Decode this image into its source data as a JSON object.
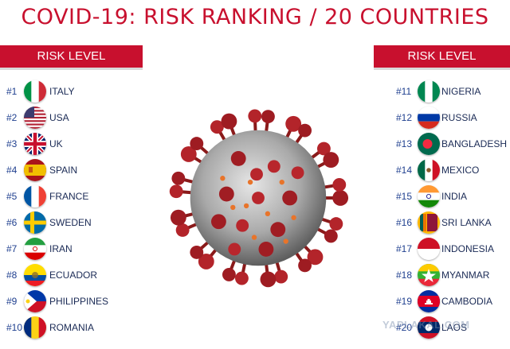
{
  "title": "COVID-19: RISK RANKING / 20 COUNTRIES",
  "left_header": "RISK LEVEL",
  "right_header": "RISK LEVEL",
  "accent_color": "#c8102e",
  "rank_color": "#1f3f8f",
  "left_list": [
    {
      "rank": "#1",
      "country": "ITALY",
      "flag": "italy-flag"
    },
    {
      "rank": "#2",
      "country": "USA",
      "flag": "usa-flag"
    },
    {
      "rank": "#3",
      "country": "UK",
      "flag": "uk-flag"
    },
    {
      "rank": "#4",
      "country": "SPAIN",
      "flag": "spain-flag"
    },
    {
      "rank": "#5",
      "country": "FRANCE",
      "flag": "france-flag"
    },
    {
      "rank": "#6",
      "country": "SWEDEN",
      "flag": "sweden-flag"
    },
    {
      "rank": "#7",
      "country": "IRAN",
      "flag": "iran-flag"
    },
    {
      "rank": "#8",
      "country": "ECUADOR",
      "flag": "ecuador-flag"
    },
    {
      "rank": "#9",
      "country": "PHILIPPINES",
      "flag": "philippines-flag"
    },
    {
      "rank": "#10",
      "country": "ROMANIA",
      "flag": "romania-flag"
    }
  ],
  "right_list": [
    {
      "rank": "#11",
      "country": "NIGERIA",
      "flag": "nigeria-flag"
    },
    {
      "rank": "#12",
      "country": "RUSSIA",
      "flag": "russia-flag"
    },
    {
      "rank": "#13",
      "country": "BANGLADESH",
      "flag": "bangladesh-flag"
    },
    {
      "rank": "#14",
      "country": "MEXICO",
      "flag": "mexico-flag"
    },
    {
      "rank": "#15",
      "country": "INDIA",
      "flag": "india-flag"
    },
    {
      "rank": "#16",
      "country": "SRI LANKA",
      "flag": "sri-lanka-flag"
    },
    {
      "rank": "#17",
      "country": "INDONESIA",
      "flag": "indonesia-flag"
    },
    {
      "rank": "#18",
      "country": "MYANMAR",
      "flag": "myanmar-flag"
    },
    {
      "rank": "#19",
      "country": "CAMBODIA",
      "flag": "cambodia-flag"
    },
    {
      "rank": "#20",
      "country": "LAOS",
      "flag": "laos-flag"
    }
  ],
  "watermark": "YAPLAKAL.COM"
}
